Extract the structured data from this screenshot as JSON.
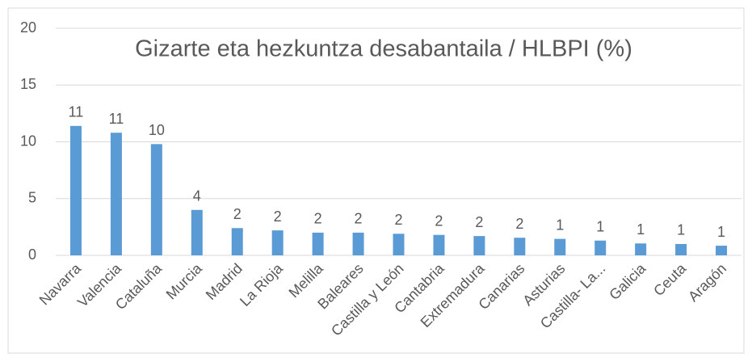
{
  "chart_data": {
    "type": "bar",
    "title": "Gizarte eta hezkuntza desabantaila / HLBPI (%)",
    "categories": [
      "Navarra",
      "Valencia",
      "Cataluña",
      "Murcia",
      "Madrid",
      "La Rioja",
      "Melilla",
      "Baleares",
      "Castilla y León",
      "Cantabria",
      "Extremadura",
      "Canarias",
      "Asturias",
      "Castilla- La...",
      "Galicia",
      "Ceuta",
      "Aragón"
    ],
    "values": [
      11.4,
      10.8,
      9.8,
      4.0,
      2.4,
      2.2,
      2.0,
      2.0,
      1.9,
      1.8,
      1.7,
      1.55,
      1.45,
      1.3,
      1.05,
      1.0,
      0.85
    ],
    "value_labels": [
      "11",
      "11",
      "10",
      "4",
      "2",
      "2",
      "2",
      "2",
      "2",
      "2",
      "2",
      "2",
      "1",
      "1",
      "1",
      "1",
      "1"
    ],
    "color": "#5b9bd5",
    "ylim": [
      0,
      20
    ],
    "yticks": [
      0,
      5,
      10,
      15,
      20
    ],
    "grid": true
  }
}
